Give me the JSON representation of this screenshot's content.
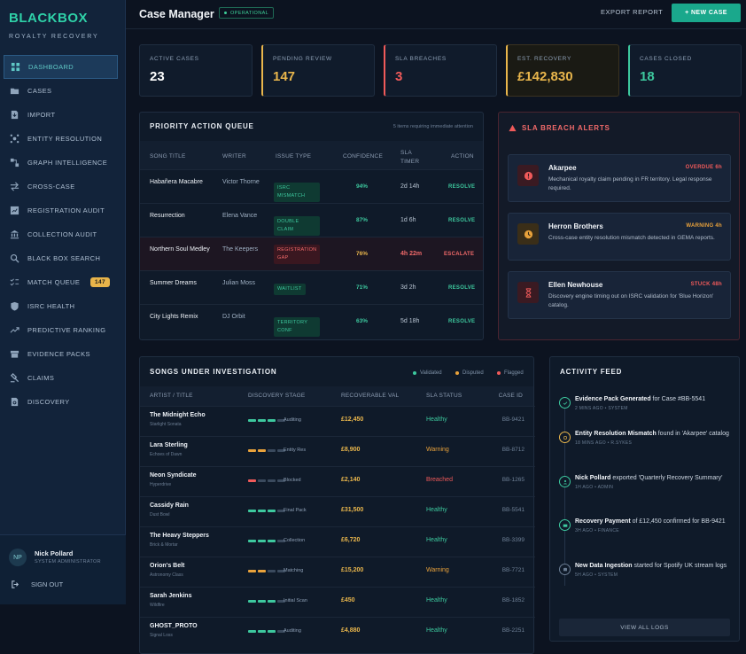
{
  "brand": {
    "logo": "BLACKBOX",
    "subtitle": "ROYALTY RECOVERY"
  },
  "sidebar": {
    "items": [
      {
        "label": "DASHBOARD",
        "icon": "dashboard-icon",
        "active": true
      },
      {
        "label": "CASES",
        "icon": "folder-icon"
      },
      {
        "label": "IMPORT",
        "icon": "import-icon"
      },
      {
        "label": "ENTITY RESOLUTION",
        "icon": "network-icon"
      },
      {
        "label": "GRAPH INTELLIGENCE",
        "icon": "graph-icon"
      },
      {
        "label": "CROSS-CASE",
        "icon": "arrows-icon"
      },
      {
        "label": "REGISTRATION AUDIT",
        "icon": "chart-icon"
      },
      {
        "label": "COLLECTION AUDIT",
        "icon": "bank-icon"
      },
      {
        "label": "BLACK BOX SEARCH",
        "icon": "search-icon"
      },
      {
        "label": "MATCH QUEUE",
        "icon": "checklist-icon",
        "badge": "147"
      },
      {
        "label": "ISRC HEALTH",
        "icon": "shield-icon"
      },
      {
        "label": "PREDICTIVE RANKING",
        "icon": "trend-icon"
      },
      {
        "label": "EVIDENCE PACKS",
        "icon": "box-icon"
      },
      {
        "label": "CLAIMS",
        "icon": "gavel-icon"
      },
      {
        "label": "DISCOVERY",
        "icon": "document-search-icon"
      }
    ],
    "user": {
      "initials": "NP",
      "name": "Nick Pollard",
      "role": "SYSTEM ADMINISTRATOR"
    },
    "signout": "SIGN OUT"
  },
  "header": {
    "title": "Case Manager",
    "status": "OPERATIONAL",
    "export": "EXPORT REPORT",
    "new_case": "+ NEW CASE"
  },
  "kpis": [
    {
      "label": "ACTIVE CASES",
      "value": "23",
      "color": "#ffffff"
    },
    {
      "label": "PENDING REVIEW",
      "value": "147",
      "color": "#e9b64c"
    },
    {
      "label": "SLA BREACHES",
      "value": "3",
      "color": "#f05a5a"
    },
    {
      "label": "EST. RECOVERY",
      "value": "£142,830",
      "color": "#e9b64c"
    },
    {
      "label": "CASES CLOSED",
      "value": "18",
      "color": "#3dc89e"
    }
  ],
  "queue": {
    "title": "PRIORITY ACTION QUEUE",
    "note": "5 items requiring immediate attention",
    "headers": [
      "SONG TITLE",
      "WRITER",
      "ISSUE TYPE",
      "CONFIDENCE",
      "SLA TIMER",
      "ACTION"
    ],
    "rows": [
      {
        "song": "Habañera Macabre",
        "writer": "Victor Thorne",
        "issue": "ISRC MISMATCH",
        "conf": "94%",
        "timer": "2d 14h",
        "action": "RESOLVE"
      },
      {
        "song": "Resurrection",
        "writer": "Elena Vance",
        "issue": "DOUBLE CLAIM",
        "conf": "87%",
        "timer": "1d 6h",
        "action": "RESOLVE"
      },
      {
        "song": "Northern Soul Medley",
        "writer": "The Keepers",
        "issue": "REGISTRATION GAP",
        "conf": "76%",
        "timer": "4h 22m",
        "action": "ESCALATE"
      },
      {
        "song": "Summer Dreams",
        "writer": "Julian Moss",
        "issue": "WAITLIST",
        "conf": "71%",
        "timer": "3d 2h",
        "action": "RESOLVE"
      },
      {
        "song": "City Lights Remix",
        "writer": "DJ Orbit",
        "issue": "TERRITORY CONF",
        "conf": "63%",
        "timer": "5d 18h",
        "action": "RESOLVE"
      }
    ]
  },
  "alerts": {
    "title": "SLA BREACH ALERTS",
    "items": [
      {
        "name": "Akarpee",
        "status": "OVERDUE 6h",
        "desc": "Mechanical royalty claim pending in FR territory. Legal response required.",
        "icon": "alert-circle-icon"
      },
      {
        "name": "Herron Brothers",
        "status": "WARNING 4h",
        "desc": "Cross-case entity resolution mismatch detected in GEMA reports.",
        "icon": "clock-icon"
      },
      {
        "name": "Ellen Newhouse",
        "status": "STUCK 48h",
        "desc": "Discovery engine timing out on ISRC validation for 'Blue Horizon' catalog.",
        "icon": "hourglass-icon"
      }
    ]
  },
  "songs": {
    "title": "SONGS UNDER INVESTIGATION",
    "legend": [
      "Validated",
      "Disputed",
      "Flagged"
    ],
    "headers": [
      "ARTIST / TITLE",
      "DISCOVERY STAGE",
      "RECOVERABLE VAL",
      "SLA STATUS",
      "CASE ID"
    ],
    "rows": [
      {
        "title": "The Midnight Echo",
        "sub": "Starlight Sonata",
        "stage": "Auditing",
        "val": "£12,450",
        "sla": "Healthy",
        "id": "BB-9421",
        "tone": "green"
      },
      {
        "title": "Lara Sterling",
        "sub": "Echoes of Dawn",
        "stage": "Entity Res",
        "val": "£8,900",
        "sla": "Warning",
        "id": "BB-8712",
        "tone": "amber"
      },
      {
        "title": "Neon Syndicate",
        "sub": "Hyperdrive",
        "stage": "Blocked",
        "val": "£2,140",
        "sla": "Breached",
        "id": "BB-1265",
        "tone": "red"
      },
      {
        "title": "Cassidy Rain",
        "sub": "Dust Bowl",
        "stage": "Final Pack",
        "val": "£31,500",
        "sla": "Healthy",
        "id": "BB-5541",
        "tone": "green"
      },
      {
        "title": "The Heavy Steppers",
        "sub": "Brick & Mortar",
        "stage": "Collection",
        "val": "£6,720",
        "sla": "Healthy",
        "id": "BB-3399",
        "tone": "green"
      },
      {
        "title": "Orion's Belt",
        "sub": "Astronomy Class",
        "stage": "Matching",
        "val": "£15,200",
        "sla": "Warning",
        "id": "BB-7721",
        "tone": "amber"
      },
      {
        "title": "Sarah Jenkins",
        "sub": "Wildfire",
        "stage": "Initial Scan",
        "val": "£450",
        "sla": "Healthy",
        "id": "BB-1852",
        "tone": "green"
      },
      {
        "title": "GHOST_PROTO",
        "sub": "Signal Loss",
        "stage": "Auditing",
        "val": "£4,880",
        "sla": "Healthy",
        "id": "BB-2251",
        "tone": "green"
      }
    ]
  },
  "feed": {
    "title": "ACTIVITY FEED",
    "items": [
      {
        "bold": "Evidence Pack Generated",
        "rest": " for Case #BB-5541",
        "meta": "2 MINS AGO • SYSTEM",
        "color": "#3dc89e"
      },
      {
        "bold": "Entity Resolution Mismatch",
        "rest": " found in 'Akarpee' catalog",
        "meta": "18 MINS AGO • R.SYKES",
        "color": "#e9b64c"
      },
      {
        "bold": "Nick Pollard",
        "rest": " exported 'Quarterly Recovery Summary'",
        "meta": "1H AGO • ADMIN",
        "color": "#3dc89e"
      },
      {
        "bold": "Recovery Payment",
        "rest": " of £12,450 confirmed for BB-9421",
        "meta": "3H AGO • FINANCE",
        "color": "#3dc89e"
      },
      {
        "bold": "New Data Ingestion",
        "rest": " started for Spotify UK stream logs",
        "meta": "5H AGO • SYSTEM",
        "color": "#6b7d93"
      }
    ],
    "view_all": "VIEW ALL LOGS"
  }
}
